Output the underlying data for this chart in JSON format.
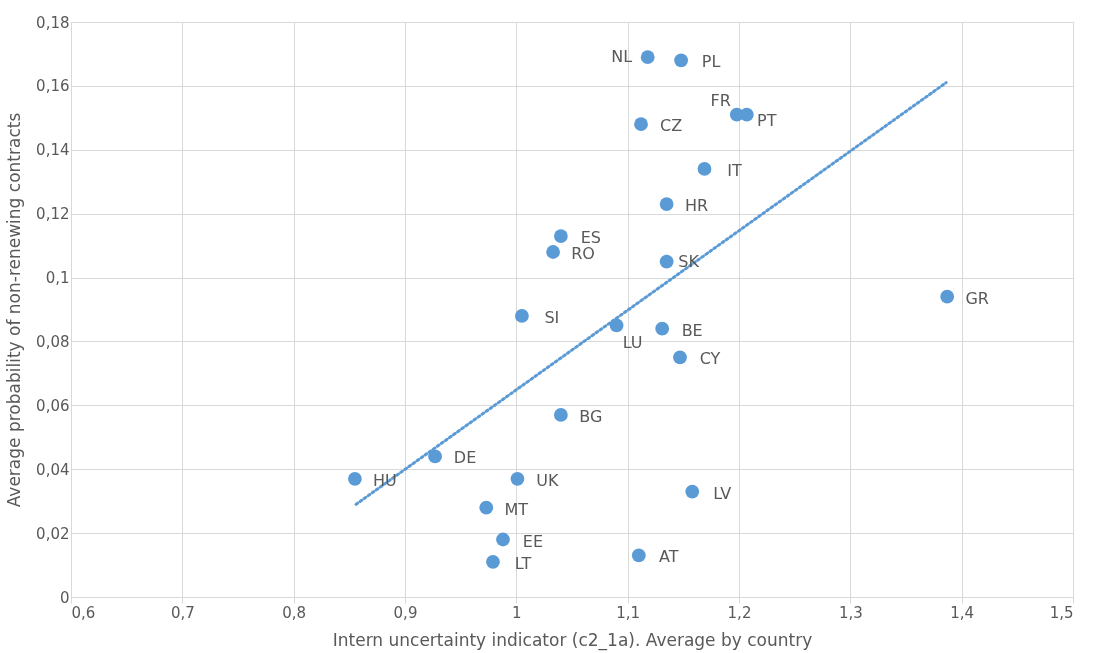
{
  "chart_data": {
    "type": "scatter",
    "xlabel": "Intern uncertainty indicator (c2_1a). Average by country",
    "ylabel": "Average probability of non-renewing contracts",
    "xlim": [
      0.6,
      1.5
    ],
    "xticks": [
      {
        "value": 0.6,
        "label": "0,6"
      },
      {
        "value": 0.7,
        "label": "0,7"
      },
      {
        "value": 0.8,
        "label": "0,8"
      },
      {
        "value": 0.9,
        "label": "0,9"
      },
      {
        "value": 1,
        "label": "1"
      },
      {
        "value": 1.1,
        "label": "1,1"
      },
      {
        "value": 1.2,
        "label": "1,2"
      },
      {
        "value": 1.3,
        "label": "1,3"
      },
      {
        "value": 1.4,
        "label": "1,4"
      },
      {
        "value": 1.5,
        "label": "1,5"
      }
    ],
    "ylim": [
      0,
      0.18
    ],
    "yticks": [
      {
        "value": 0,
        "label": "0"
      },
      {
        "value": 0.02,
        "label": "0,02"
      },
      {
        "value": 0.04,
        "label": "0,04"
      },
      {
        "value": 0.06,
        "label": "0,06"
      },
      {
        "value": 0.08,
        "label": "0,08"
      },
      {
        "value": 0.1,
        "label": "0,1"
      },
      {
        "value": 0.12,
        "label": "0,12"
      },
      {
        "value": 0.14,
        "label": "0,14"
      },
      {
        "value": 0.16,
        "label": "0,16"
      },
      {
        "value": 0.18,
        "label": "0,18"
      }
    ],
    "grid": true,
    "series": [
      {
        "color": "#5b9bd5",
        "marker": "circle",
        "x": [
          1.118,
          1.148,
          1.198,
          1.207,
          1.112,
          1.169,
          1.135,
          1.04,
          1.033,
          1.135,
          1.387,
          1.005,
          1.09,
          1.131,
          1.147,
          1.04,
          0.927,
          0.855,
          1.001,
          1.158,
          0.973,
          0.988,
          0.979,
          1.11
        ],
        "values": [
          0.169,
          0.168,
          0.151,
          0.151,
          0.148,
          0.134,
          0.123,
          0.113,
          0.108,
          0.105,
          0.094,
          0.088,
          0.085,
          0.084,
          0.075,
          0.057,
          0.044,
          0.037,
          0.037,
          0.033,
          0.028,
          0.018,
          0.011,
          0.013
        ]
      },
      {
        "type": "line",
        "color": "#5b9bd5",
        "line_style": "dotted",
        "x": [
          0.856,
          1.386
        ],
        "values": [
          0.029,
          0.161
        ]
      }
    ],
    "annotations": [
      {
        "text": "NL",
        "x": 1.118,
        "y": 0.169
      },
      {
        "text": "PL",
        "x": 1.148,
        "y": 0.168
      },
      {
        "text": "FR",
        "x": 1.198,
        "y": 0.151
      },
      {
        "text": "PT",
        "x": 1.207,
        "y": 0.151
      },
      {
        "text": "CZ",
        "x": 1.112,
        "y": 0.148
      },
      {
        "text": "IT",
        "x": 1.169,
        "y": 0.134
      },
      {
        "text": "HR",
        "x": 1.135,
        "y": 0.123
      },
      {
        "text": "ES",
        "x": 1.04,
        "y": 0.113
      },
      {
        "text": "RO",
        "x": 1.033,
        "y": 0.108
      },
      {
        "text": "SK",
        "x": 1.135,
        "y": 0.105
      },
      {
        "text": "GR",
        "x": 1.387,
        "y": 0.094
      },
      {
        "text": "SI",
        "x": 1.005,
        "y": 0.088
      },
      {
        "text": "LU",
        "x": 1.09,
        "y": 0.085
      },
      {
        "text": "BE",
        "x": 1.131,
        "y": 0.084
      },
      {
        "text": "CY",
        "x": 1.147,
        "y": 0.075
      },
      {
        "text": "BG",
        "x": 1.04,
        "y": 0.057
      },
      {
        "text": "DE",
        "x": 0.927,
        "y": 0.044
      },
      {
        "text": "HU",
        "x": 0.855,
        "y": 0.037
      },
      {
        "text": "UK",
        "x": 1.001,
        "y": 0.037
      },
      {
        "text": "LV",
        "x": 1.158,
        "y": 0.033
      },
      {
        "text": "MT",
        "x": 0.973,
        "y": 0.028
      },
      {
        "text": "EE",
        "x": 0.988,
        "y": 0.018
      },
      {
        "text": "LT",
        "x": 0.979,
        "y": 0.011
      },
      {
        "text": "AT",
        "x": 1.11,
        "y": 0.013
      }
    ]
  }
}
